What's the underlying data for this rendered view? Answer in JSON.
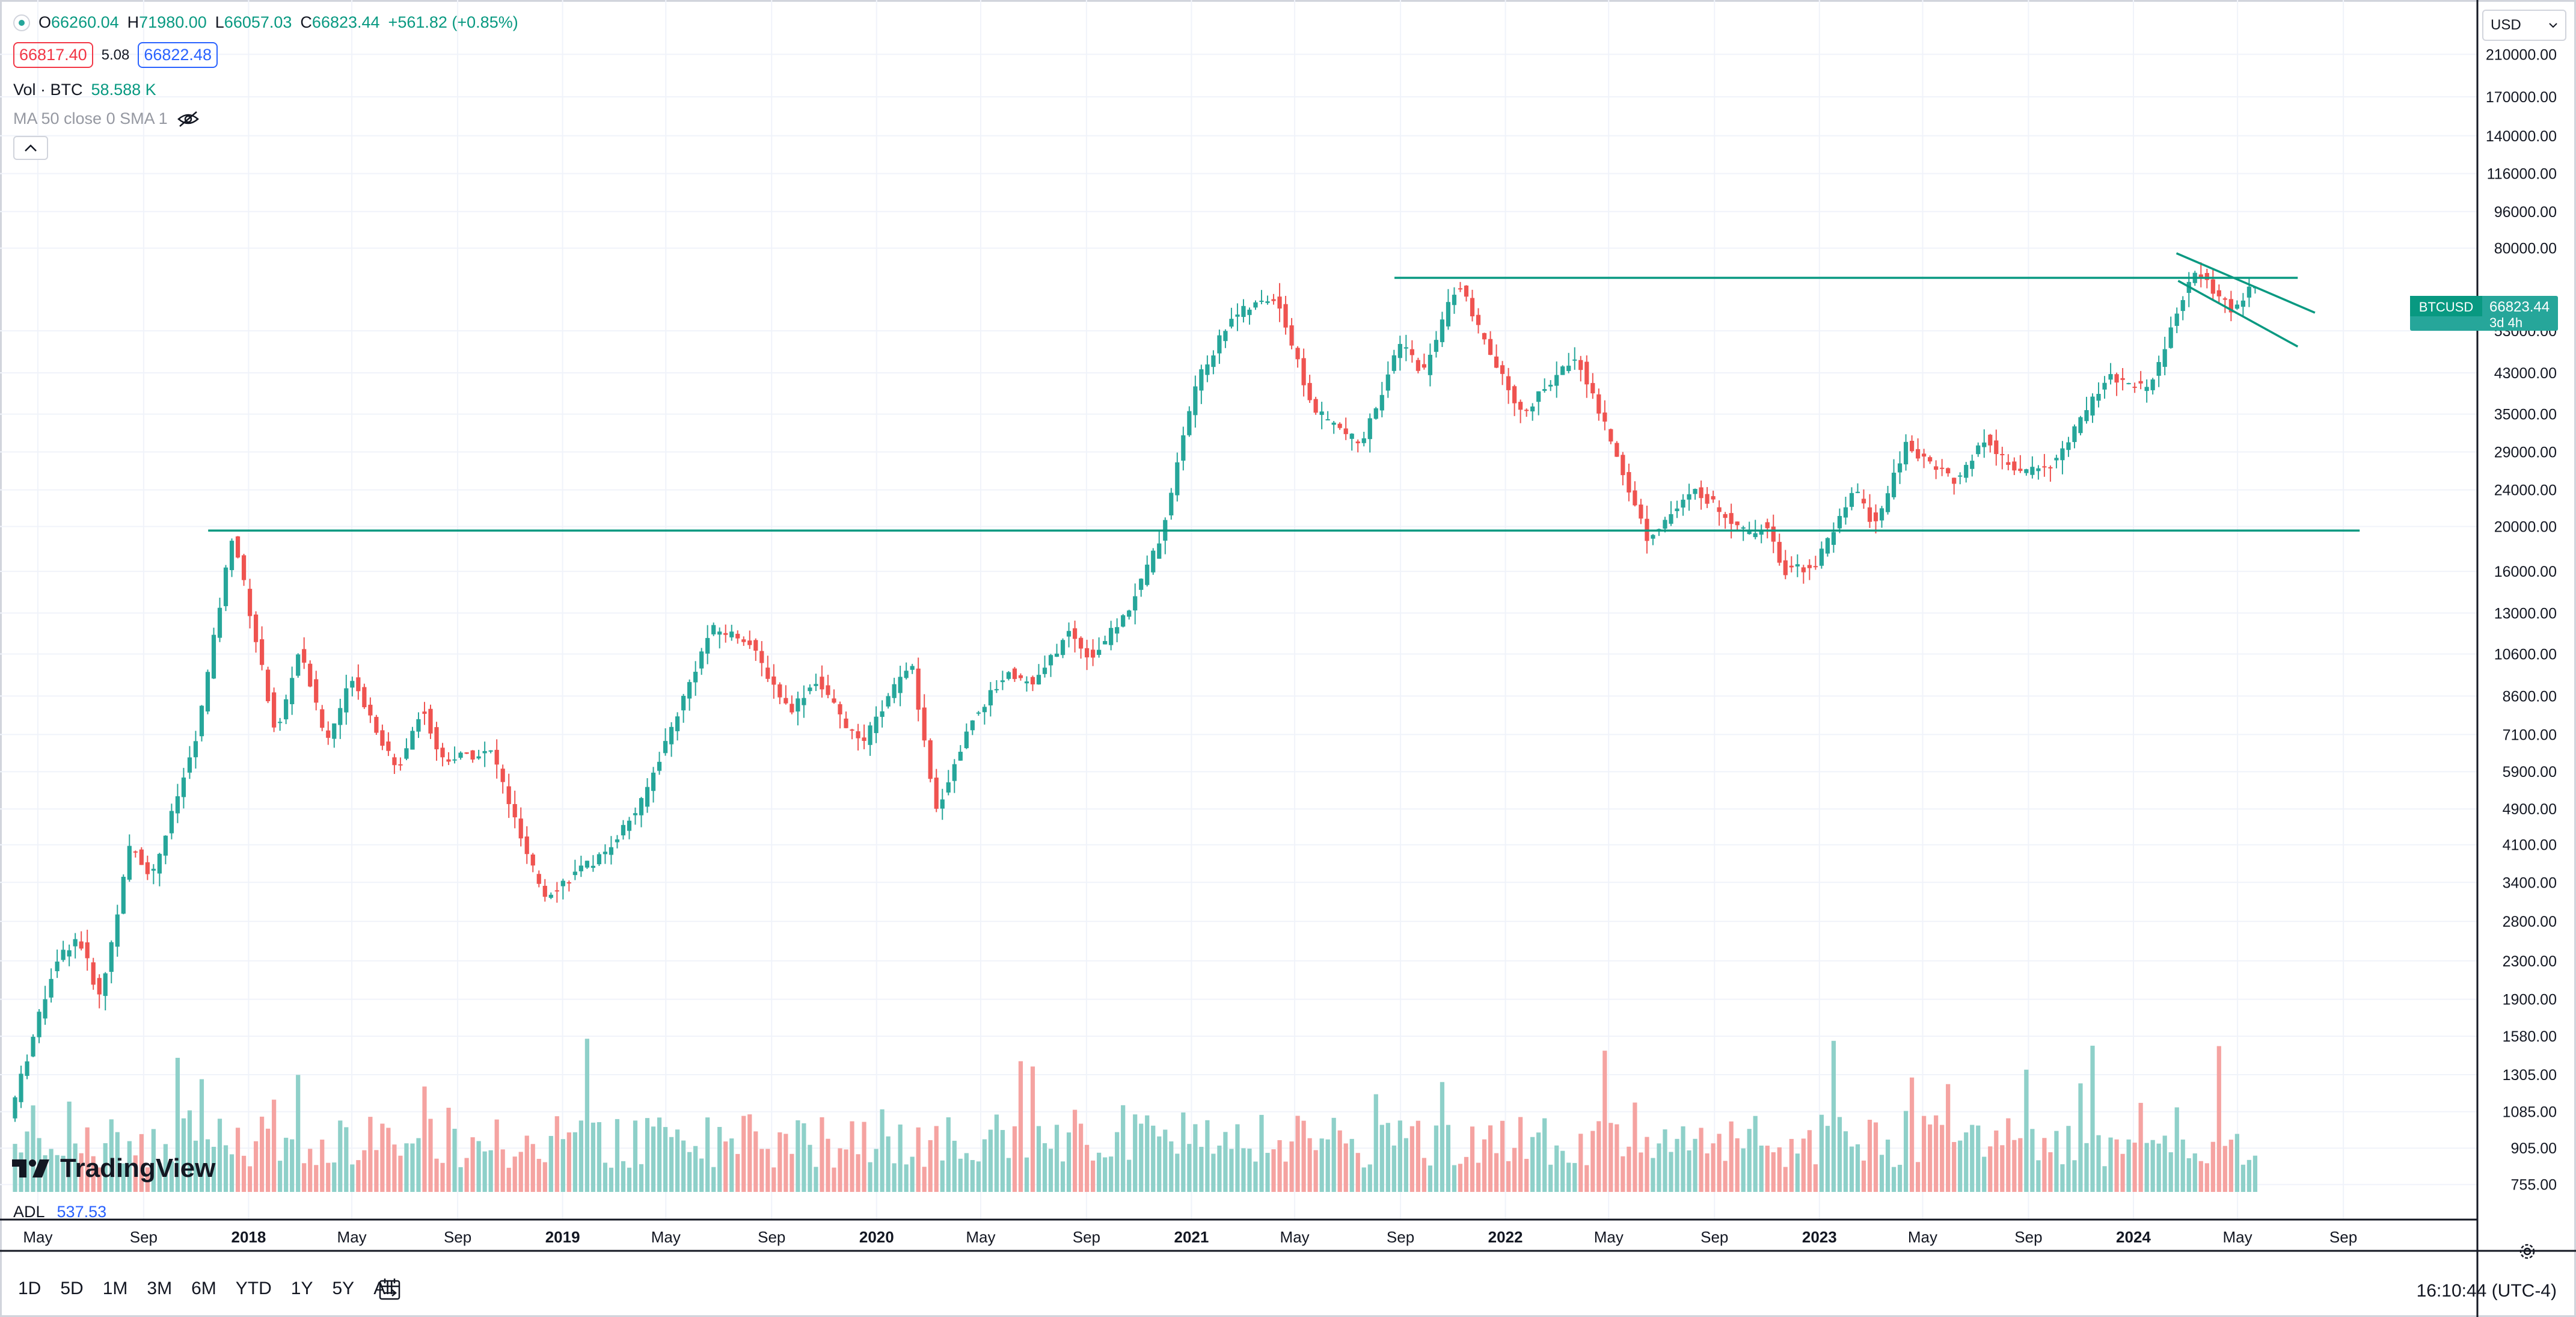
{
  "legend": {
    "open_label": "O",
    "open": "66260.04",
    "high_label": "H",
    "high": "71980.00",
    "low_label": "L",
    "low": "66057.03",
    "close_label": "C",
    "close": "66823.44",
    "change": "+561.82 (+0.85%)",
    "sell_price": "66817.40",
    "spread": "5.08",
    "buy_price": "66822.48",
    "volume_label": "Vol · BTC",
    "volume_value": "58.588 K",
    "ma_label": "MA 50 close 0 SMA 1"
  },
  "currency": {
    "selected": "USD"
  },
  "price_axis": {
    "labels": [
      "210000.00",
      "170000.00",
      "140000.00",
      "116000.00",
      "96000.00",
      "80000.00",
      "53000.00",
      "43000.00",
      "35000.00",
      "29000.00",
      "24000.00",
      "20000.00",
      "16000.00",
      "13000.00",
      "10600.00",
      "8600.00",
      "7100.00",
      "5900.00",
      "4900.00",
      "4100.00",
      "3400.00",
      "2800.00",
      "2300.00",
      "1900.00",
      "1580.00",
      "1305.00",
      "1085.00",
      "905.00",
      "755.00"
    ]
  },
  "price_badge": {
    "symbol": "BTCUSD",
    "price": "66823.44",
    "countdown": "3d 4h"
  },
  "time_axis": {
    "labels": [
      "May",
      "Sep",
      "2018",
      "May",
      "Sep",
      "2019",
      "May",
      "Sep",
      "2020",
      "May",
      "Sep",
      "2021",
      "May",
      "Sep",
      "2022",
      "May",
      "Sep",
      "2023",
      "May",
      "Sep",
      "2024",
      "May",
      "Sep"
    ]
  },
  "adl": {
    "label": "ADL",
    "value": "537.53"
  },
  "range_bar": {
    "items": [
      "1D",
      "5D",
      "1M",
      "3M",
      "6M",
      "YTD",
      "1Y",
      "5Y",
      "All"
    ]
  },
  "clock": "16:10:44 (UTC-4)",
  "logo_text": "TradingView",
  "colors": {
    "up": "#26a69a",
    "down": "#ef5350",
    "line": "#089981",
    "vol_up": "#8ed0c9",
    "vol_down": "#f5a3a1"
  },
  "chart_data": {
    "type": "candlestick",
    "symbol": "BTCUSD",
    "interval": "1W",
    "y_scale": "log",
    "ylim": [
      700,
      230000
    ],
    "xlim": [
      "2017-04-01",
      "2024-10-15"
    ],
    "grid": true,
    "anchors": [
      [
        "2017-04-01",
        1050
      ],
      [
        "2017-05-25",
        2300
      ],
      [
        "2017-06-20",
        2600
      ],
      [
        "2017-07-16",
        1900
      ],
      [
        "2017-08-20",
        4100
      ],
      [
        "2017-09-14",
        3500
      ],
      [
        "2017-11-05",
        7000
      ],
      [
        "2017-12-17",
        19500
      ],
      [
        "2018-02-06",
        7000
      ],
      [
        "2018-03-05",
        11000
      ],
      [
        "2018-04-05",
        6800
      ],
      [
        "2018-05-05",
        9500
      ],
      [
        "2018-06-25",
        5900
      ],
      [
        "2018-07-25",
        8200
      ],
      [
        "2018-08-15",
        6300
      ],
      [
        "2018-10-15",
        6500
      ],
      [
        "2018-11-25",
        3800
      ],
      [
        "2018-12-15",
        3200
      ],
      [
        "2019-02-20",
        3900
      ],
      [
        "2019-04-05",
        5000
      ],
      [
        "2019-06-26",
        12000
      ],
      [
        "2019-08-05",
        11500
      ],
      [
        "2019-09-25",
        8000
      ],
      [
        "2019-10-26",
        9300
      ],
      [
        "2019-12-17",
        6700
      ],
      [
        "2020-02-13",
        10300
      ],
      [
        "2020-03-13",
        4800
      ],
      [
        "2020-04-25",
        7700
      ],
      [
        "2020-06-05",
        9700
      ],
      [
        "2020-07-05",
        9100
      ],
      [
        "2020-08-15",
        11800
      ],
      [
        "2020-09-10",
        10400
      ],
      [
        "2020-10-21",
        13000
      ],
      [
        "2020-11-30",
        19000
      ],
      [
        "2021-01-08",
        40000
      ],
      [
        "2021-02-20",
        57000
      ],
      [
        "2021-04-13",
        63000
      ],
      [
        "2021-05-25",
        36000
      ],
      [
        "2021-07-20",
        30000
      ],
      [
        "2021-09-05",
        50000
      ],
      [
        "2021-10-01",
        43000
      ],
      [
        "2021-11-10",
        68000
      ],
      [
        "2021-12-15",
        48000
      ],
      [
        "2022-01-23",
        35000
      ],
      [
        "2022-03-28",
        47000
      ],
      [
        "2022-05-12",
        29000
      ],
      [
        "2022-06-18",
        19000
      ],
      [
        "2022-08-15",
        24000
      ],
      [
        "2022-10-15",
        19200
      ],
      [
        "2022-11-08",
        20500
      ],
      [
        "2022-11-21",
        16000
      ],
      [
        "2022-12-30",
        16500
      ],
      [
        "2023-02-15",
        24000
      ],
      [
        "2023-03-10",
        20000
      ],
      [
        "2023-04-15",
        30000
      ],
      [
        "2023-06-15",
        25000
      ],
      [
        "2023-07-15",
        31000
      ],
      [
        "2023-08-20",
        26000
      ],
      [
        "2023-10-05",
        27500
      ],
      [
        "2023-12-05",
        42000
      ],
      [
        "2024-01-23",
        39500
      ],
      [
        "2024-03-05",
        65000
      ],
      [
        "2024-03-14",
        72000
      ],
      [
        "2024-05-01",
        58000
      ],
      [
        "2024-05-20",
        66823
      ]
    ],
    "trendlines": [
      {
        "from": [
          "2017-11-15",
          19600
        ],
        "to": [
          "2024-09-20",
          19600
        ]
      },
      {
        "from": [
          "2021-08-25",
          69000
        ],
        "to": [
          "2024-07-10",
          69000
        ]
      },
      {
        "from": [
          "2024-02-20",
          78000
        ],
        "to": [
          "2024-07-30",
          58000
        ]
      },
      {
        "from": [
          "2024-02-22",
          68000
        ],
        "to": [
          "2024-07-10",
          49000
        ]
      }
    ]
  }
}
